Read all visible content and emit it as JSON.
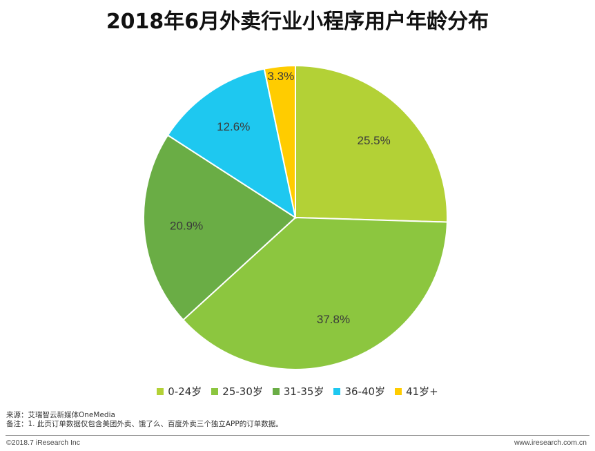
{
  "chart_data": {
    "type": "pie",
    "title": "2018年6月外卖行业小程序用户年龄分布",
    "categories": [
      "0-24岁",
      "25-30岁",
      "31-35岁",
      "36-40岁",
      "41岁+"
    ],
    "values": [
      25.5,
      37.8,
      20.9,
      12.6,
      3.3
    ],
    "data_labels": [
      "25.5%",
      "37.8%",
      "20.9%",
      "12.6%",
      "3.3%"
    ],
    "unit": "%",
    "legend_position": "bottom",
    "colors": [
      "#b3d136",
      "#8cc63f",
      "#6aad45",
      "#1ec8f0",
      "#ffcc00"
    ]
  },
  "notes": {
    "source": "来源：艾瑞智云新媒体OneMedia",
    "remark": "备注：1. 此页订单数据仅包含美团外卖、饿了么、百度外卖三个独立APP的订单数据。"
  },
  "footer": {
    "copyright": "©2018.7 iResearch Inc",
    "website": "www.iresearch.com.cn"
  }
}
